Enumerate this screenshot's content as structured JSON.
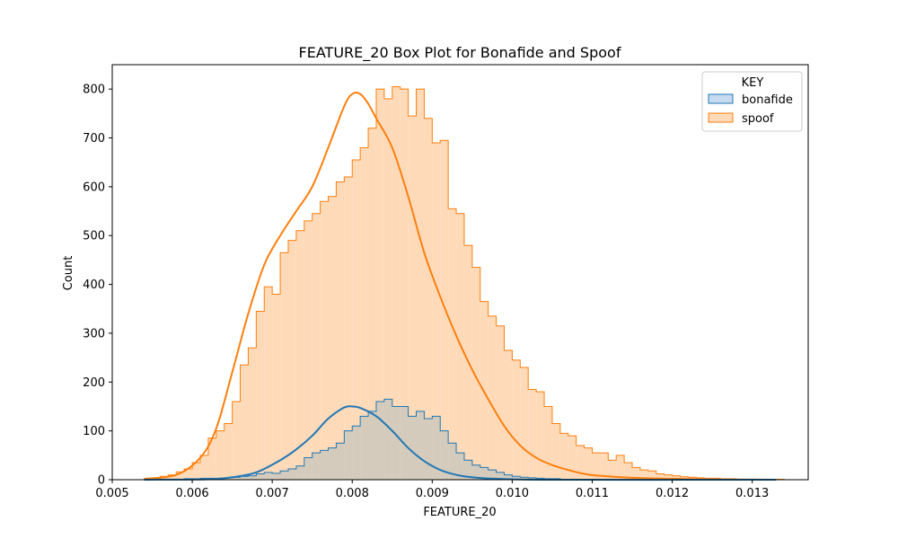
{
  "chart_data": {
    "type": "histogram",
    "title": "FEATURE_20 Box Plot for Bonafide and Spoof",
    "xlabel": "FEATURE_20",
    "ylabel": "Count",
    "xlim": [
      0.005,
      0.0137
    ],
    "ylim": [
      0,
      850
    ],
    "xticks": [
      0.005,
      0.006,
      0.007,
      0.008,
      0.009,
      0.01,
      0.011,
      0.012,
      0.013
    ],
    "xtick_labels": [
      "0.005",
      "0.006",
      "0.007",
      "0.008",
      "0.009",
      "0.010",
      "0.011",
      "0.012",
      "0.013"
    ],
    "yticks": [
      0,
      100,
      200,
      300,
      400,
      500,
      600,
      700,
      800
    ],
    "ytick_labels": [
      "0",
      "100",
      "200",
      "300",
      "400",
      "500",
      "600",
      "700",
      "800"
    ],
    "grid": false,
    "legend": {
      "title": "KEY",
      "placement": "top-right"
    },
    "bin_start": 0.0054,
    "bin_width": 0.0001,
    "series": [
      {
        "name": "spoof",
        "color": "#ff7f0e",
        "fill": "#ffdab9",
        "counts": [
          2,
          3,
          7,
          10,
          16,
          22,
          35,
          50,
          85,
          100,
          115,
          160,
          235,
          270,
          345,
          395,
          380,
          465,
          490,
          510,
          530,
          545,
          570,
          580,
          610,
          620,
          655,
          680,
          720,
          800,
          780,
          805,
          800,
          745,
          800,
          740,
          690,
          695,
          555,
          545,
          480,
          435,
          365,
          335,
          315,
          265,
          245,
          230,
          185,
          180,
          150,
          115,
          95,
          90,
          70,
          65,
          55,
          55,
          40,
          50,
          35,
          25,
          20,
          18,
          12,
          10,
          8,
          6,
          5,
          4,
          3,
          3,
          2,
          2,
          1,
          1,
          1,
          1,
          1,
          1
        ],
        "kde": [
          [
            0.0054,
            2
          ],
          [
            0.0058,
            10
          ],
          [
            0.0061,
            45
          ],
          [
            0.0063,
            105
          ],
          [
            0.0065,
            220
          ],
          [
            0.0067,
            340
          ],
          [
            0.0069,
            440
          ],
          [
            0.0071,
            500
          ],
          [
            0.0073,
            550
          ],
          [
            0.0075,
            600
          ],
          [
            0.0077,
            680
          ],
          [
            0.0079,
            765
          ],
          [
            0.008,
            790
          ],
          [
            0.0081,
            790
          ],
          [
            0.0082,
            770
          ],
          [
            0.0083,
            740
          ],
          [
            0.0085,
            680
          ],
          [
            0.0087,
            580
          ],
          [
            0.0089,
            465
          ],
          [
            0.0091,
            375
          ],
          [
            0.0093,
            295
          ],
          [
            0.0095,
            225
          ],
          [
            0.0097,
            165
          ],
          [
            0.0099,
            110
          ],
          [
            0.0101,
            70
          ],
          [
            0.0103,
            45
          ],
          [
            0.0105,
            30
          ],
          [
            0.0107,
            20
          ],
          [
            0.0109,
            12
          ],
          [
            0.0111,
            8
          ],
          [
            0.0115,
            4
          ],
          [
            0.012,
            2
          ],
          [
            0.0125,
            1
          ],
          [
            0.0133,
            0
          ]
        ]
      },
      {
        "name": "bonafide",
        "color": "#1f77b4",
        "fill": "#c5c6bd",
        "counts": [
          0,
          0,
          0,
          1,
          1,
          2,
          2,
          3,
          3,
          3,
          4,
          5,
          7,
          8,
          12,
          15,
          13,
          18,
          22,
          28,
          45,
          55,
          60,
          65,
          75,
          100,
          110,
          130,
          140,
          160,
          165,
          150,
          150,
          130,
          140,
          125,
          130,
          100,
          75,
          55,
          40,
          30,
          25,
          20,
          15,
          10,
          7,
          5,
          4,
          3,
          2,
          2,
          1,
          1,
          1,
          1,
          1,
          0,
          0,
          0,
          0,
          0,
          0,
          0,
          0,
          0,
          0,
          0,
          0,
          0,
          0,
          0,
          0,
          0,
          0,
          0,
          0,
          0,
          0,
          0
        ],
        "kde": [
          [
            0.0054,
            0
          ],
          [
            0.0062,
            1
          ],
          [
            0.0065,
            5
          ],
          [
            0.0068,
            15
          ],
          [
            0.0071,
            40
          ],
          [
            0.0073,
            62
          ],
          [
            0.0075,
            90
          ],
          [
            0.0077,
            125
          ],
          [
            0.0079,
            148
          ],
          [
            0.008,
            150
          ],
          [
            0.0081,
            147
          ],
          [
            0.0083,
            130
          ],
          [
            0.0085,
            100
          ],
          [
            0.0087,
            65
          ],
          [
            0.0089,
            38
          ],
          [
            0.0091,
            20
          ],
          [
            0.0093,
            10
          ],
          [
            0.0095,
            5
          ],
          [
            0.0098,
            2
          ],
          [
            0.0105,
            0
          ],
          [
            0.0133,
            0
          ]
        ]
      }
    ]
  }
}
